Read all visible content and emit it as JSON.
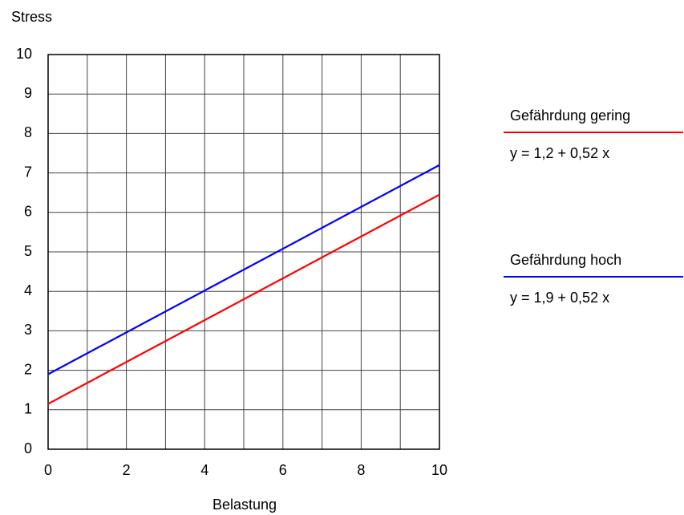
{
  "chart_data": {
    "type": "line",
    "y_label": "Stress",
    "x_label": "Belastung",
    "x": [
      0,
      10
    ],
    "xlim": [
      0,
      10
    ],
    "xticks": [
      0,
      2,
      4,
      6,
      8,
      10
    ],
    "xgrid": [
      0,
      1,
      2,
      3,
      4,
      5,
      6,
      7,
      8,
      9,
      10
    ],
    "ylim": [
      0,
      10
    ],
    "yticks": [
      0,
      1,
      2,
      3,
      4,
      5,
      6,
      7,
      8,
      9,
      10
    ],
    "grid": true,
    "legend": "right",
    "series": [
      {
        "name": "Gefährdung gering",
        "color": "#ff0000",
        "values": [
          1.15,
          6.45
        ],
        "equation": "y =  1,2 + 0,52 x"
      },
      {
        "name": "Gefährdung hoch",
        "color": "#0000ff",
        "values": [
          1.9,
          7.2
        ],
        "equation": "y = 1,9 + 0,52 x"
      }
    ]
  }
}
